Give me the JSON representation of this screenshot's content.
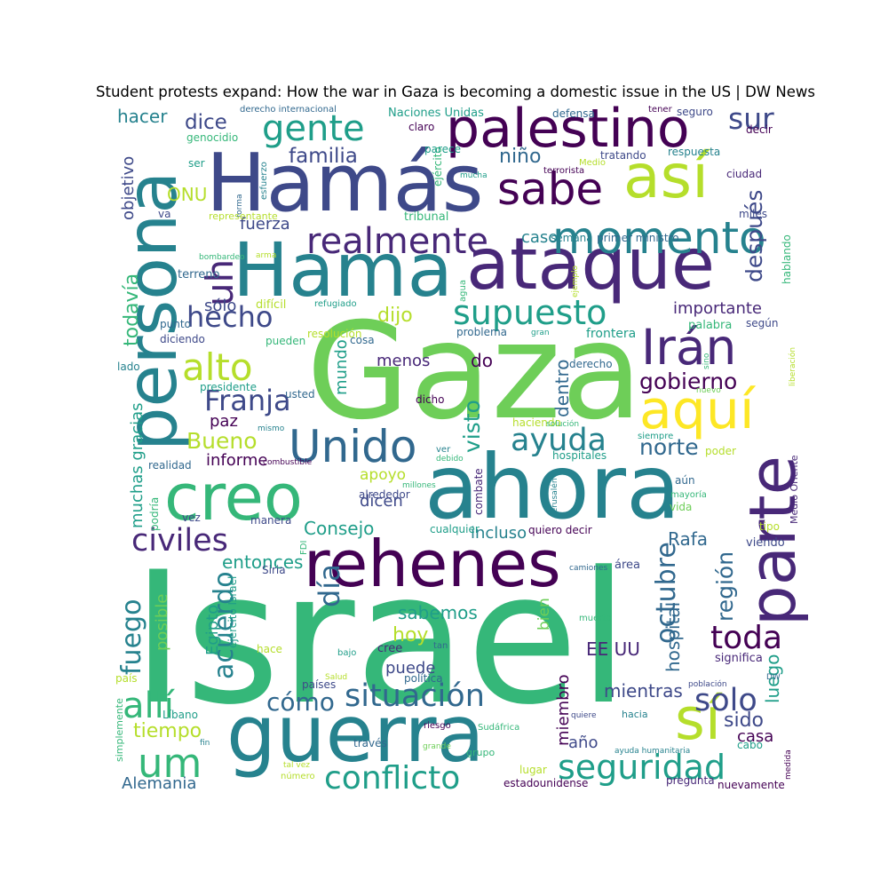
{
  "title": "Student protests expand: How the war in Gaza is becoming a domestic issue in the US | DW News",
  "palette": [
    "#440154",
    "#482878",
    "#3e4989",
    "#31688e",
    "#26828e",
    "#1f9e89",
    "#35b779",
    "#6ece58",
    "#b5de2b",
    "#fde725"
  ],
  "words": [
    {
      "text": "Israel"
    },
    {
      "text": "Gaza"
    },
    {
      "text": "ahora"
    },
    {
      "text": "guerra"
    },
    {
      "text": "Hamás"
    },
    {
      "text": "Hama"
    },
    {
      "text": "ataque"
    },
    {
      "text": "persona"
    },
    {
      "text": "creo"
    },
    {
      "text": "rehenes"
    },
    {
      "text": "parte"
    },
    {
      "text": "palestino"
    },
    {
      "text": "así"
    },
    {
      "text": "sí"
    },
    {
      "text": "aquí"
    },
    {
      "text": "Irán"
    },
    {
      "text": "Unido"
    },
    {
      "text": "momento"
    },
    {
      "text": "sabe"
    },
    {
      "text": "gente"
    },
    {
      "text": "realmente"
    },
    {
      "text": "supuesto"
    },
    {
      "text": "uh"
    },
    {
      "text": "um"
    },
    {
      "text": "situación"
    },
    {
      "text": "seguridad"
    },
    {
      "text": "alto"
    },
    {
      "text": "allí"
    },
    {
      "text": "civiles"
    },
    {
      "text": "conflicto"
    },
    {
      "text": "toda"
    },
    {
      "text": "Franja"
    },
    {
      "text": "ayuda"
    },
    {
      "text": "solo"
    },
    {
      "text": "octubre"
    },
    {
      "text": "hecho"
    },
    {
      "text": "sur"
    },
    {
      "text": "fuego"
    },
    {
      "text": "cómo"
    },
    {
      "text": "día"
    },
    {
      "text": "acuerdo"
    },
    {
      "text": "después"
    },
    {
      "text": "gobierno"
    },
    {
      "text": "norte"
    },
    {
      "text": "Bueno"
    },
    {
      "text": "familia"
    },
    {
      "text": "dice"
    },
    {
      "text": "niño"
    },
    {
      "text": "dijo"
    },
    {
      "text": "visto"
    },
    {
      "text": "región"
    },
    {
      "text": "hoy"
    },
    {
      "text": "tiempo"
    },
    {
      "text": "EE UU"
    },
    {
      "text": "sido"
    },
    {
      "text": "hospital"
    },
    {
      "text": "todavía"
    },
    {
      "text": "Consejo"
    },
    {
      "text": "entonces"
    },
    {
      "text": "Rafa"
    },
    {
      "text": "fuerza"
    },
    {
      "text": "dentro"
    },
    {
      "text": "sabemos"
    },
    {
      "text": "mientras"
    },
    {
      "text": "luego"
    },
    {
      "text": "importante"
    },
    {
      "text": "ONU"
    },
    {
      "text": "hacer"
    },
    {
      "text": "caso"
    },
    {
      "text": "muchas gracias"
    },
    {
      "text": "posible"
    },
    {
      "text": "incluso"
    },
    {
      "text": "puede"
    },
    {
      "text": "objetivo"
    },
    {
      "text": "miembro"
    },
    {
      "text": "año"
    },
    {
      "text": "casa"
    },
    {
      "text": "Alemania"
    },
    {
      "text": "sólo"
    },
    {
      "text": "menos"
    },
    {
      "text": "do"
    },
    {
      "text": "informe"
    },
    {
      "text": "apoyo"
    },
    {
      "text": "dicen"
    },
    {
      "text": "paz"
    },
    {
      "text": "Egipto"
    },
    {
      "text": "mundo"
    },
    {
      "text": "bien"
    },
    {
      "text": "Naciones Unidas"
    },
    {
      "text": "defensa"
    },
    {
      "text": "tener"
    },
    {
      "text": "seguro"
    },
    {
      "text": "derecho internacional"
    },
    {
      "text": "genocidio"
    },
    {
      "text": "claro"
    },
    {
      "text": "decir"
    },
    {
      "text": "respuesta"
    },
    {
      "text": "ejército"
    },
    {
      "text": "parece"
    },
    {
      "text": "terrorista"
    },
    {
      "text": "tratando"
    },
    {
      "text": "Medio"
    },
    {
      "text": "ser"
    },
    {
      "text": "esfuerzo"
    },
    {
      "text": "mucha"
    },
    {
      "text": "ciudad"
    },
    {
      "text": "va"
    },
    {
      "text": "forma"
    },
    {
      "text": "representante"
    },
    {
      "text": "tribunal"
    },
    {
      "text": "semana"
    },
    {
      "text": "primer ministro"
    },
    {
      "text": "miles"
    },
    {
      "text": "bombardeo"
    },
    {
      "text": "arma"
    },
    {
      "text": "hablando"
    },
    {
      "text": "terreno"
    },
    {
      "text": "agua"
    },
    {
      "text": "ejemplo"
    },
    {
      "text": "difícil"
    },
    {
      "text": "refugiado"
    },
    {
      "text": "punto"
    },
    {
      "text": "resolución"
    },
    {
      "text": "gran"
    },
    {
      "text": "frontera"
    },
    {
      "text": "palabra"
    },
    {
      "text": "según"
    },
    {
      "text": "diciendo"
    },
    {
      "text": "pueden"
    },
    {
      "text": "cosa"
    },
    {
      "text": "problema"
    },
    {
      "text": "sino"
    },
    {
      "text": "liberación"
    },
    {
      "text": "lado"
    },
    {
      "text": "derecho"
    },
    {
      "text": "presidente"
    },
    {
      "text": "nuevo"
    },
    {
      "text": "usted"
    },
    {
      "text": "mismo"
    },
    {
      "text": "dicho"
    },
    {
      "text": "haciendo"
    },
    {
      "text": "solución"
    },
    {
      "text": "siempre"
    },
    {
      "text": "poder"
    },
    {
      "text": "realidad"
    },
    {
      "text": "hospitales"
    },
    {
      "text": "debido"
    },
    {
      "text": "combustible"
    },
    {
      "text": "ver"
    },
    {
      "text": "millones"
    },
    {
      "text": "Jerusalén"
    },
    {
      "text": "combate"
    },
    {
      "text": "aún"
    },
    {
      "text": "Medio Oriente"
    },
    {
      "text": "podría"
    },
    {
      "text": "alrededor"
    },
    {
      "text": "mayoría"
    },
    {
      "text": "vida"
    },
    {
      "text": "vez"
    },
    {
      "text": "manera"
    },
    {
      "text": "cualquier"
    },
    {
      "text": "quiero decir"
    },
    {
      "text": "tipo"
    },
    {
      "text": "FDI"
    },
    {
      "text": "Siria"
    },
    {
      "text": "camiones"
    },
    {
      "text": "área"
    },
    {
      "text": "viendo"
    },
    {
      "text": "muerto"
    },
    {
      "text": "ejército Israel"
    },
    {
      "text": "hace"
    },
    {
      "text": "tan"
    },
    {
      "text": "bajo"
    },
    {
      "text": "cree"
    },
    {
      "text": "significa"
    },
    {
      "text": "política"
    },
    {
      "text": "Salud"
    },
    {
      "text": "país"
    },
    {
      "text": "países"
    },
    {
      "text": "población"
    },
    {
      "text": "DW"
    },
    {
      "text": "simplemente"
    },
    {
      "text": "quiere"
    },
    {
      "text": "hacia"
    },
    {
      "text": "Líbano"
    },
    {
      "text": "fin"
    },
    {
      "text": "riesgo"
    },
    {
      "text": "Sudáfrica"
    },
    {
      "text": "cabo"
    },
    {
      "text": "través"
    },
    {
      "text": "grande"
    },
    {
      "text": "grupo"
    },
    {
      "text": "ayuda humanitaria"
    },
    {
      "text": "tal vez"
    },
    {
      "text": "número"
    },
    {
      "text": "lugar"
    },
    {
      "text": "estadounidense"
    },
    {
      "text": "pregunta"
    },
    {
      "text": "nuevamente"
    },
    {
      "text": "medida"
    }
  ]
}
